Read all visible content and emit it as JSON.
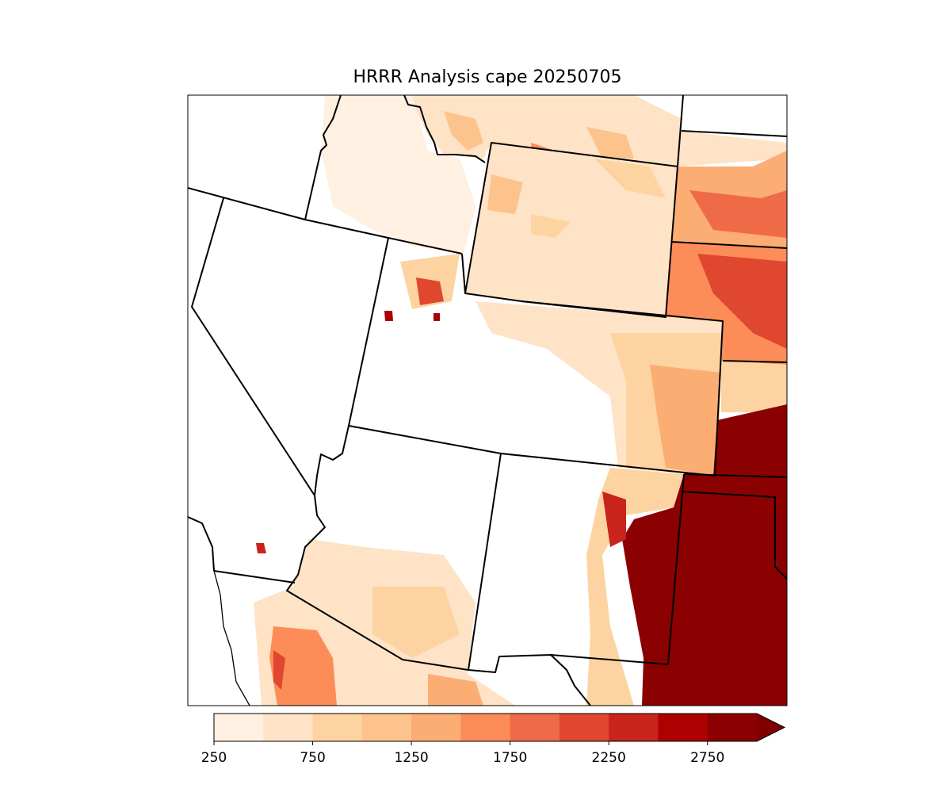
{
  "title": "HRRR Analysis cape 20250705",
  "colorbar": {
    "levels": [
      250,
      500,
      750,
      1000,
      1250,
      1500,
      1750,
      2000,
      2250,
      2500,
      2750,
      3000
    ],
    "colors": [
      "#fff0e1",
      "#fee3c6",
      "#fdd4a1",
      "#fdc38d",
      "#fcad74",
      "#fc8d59",
      "#ef6b48",
      "#e0472f",
      "#c8241b",
      "#ad0000",
      "#8b0000"
    ],
    "extend_color": "#7f0000",
    "ticks": [
      250,
      750,
      1250,
      1750,
      2250,
      2750
    ]
  }
}
